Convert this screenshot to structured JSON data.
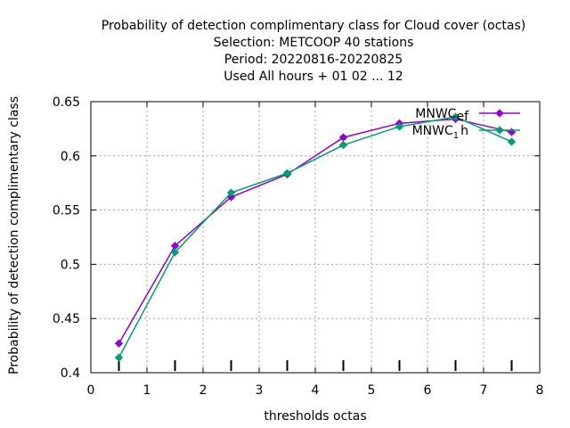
{
  "chart_data": {
    "type": "line",
    "title_lines": [
      "Probability of detection complimentary class  for Cloud cover (octas)",
      "Selection: METCOOP     40 stations",
      "Period: 20220816-20220825",
      "Used  All hours + 01 02 ... 12"
    ],
    "xlabel": "thresholds octas",
    "ylabel": "Probability of detection complimentary class",
    "xlim": [
      0,
      8
    ],
    "ylim": [
      0.4,
      0.65
    ],
    "x_ticks": [
      0,
      1,
      2,
      3,
      4,
      5,
      6,
      7,
      8
    ],
    "x_tick_labels": [
      "0",
      "1",
      "2",
      "3",
      "4",
      "5",
      "6",
      "7",
      "8"
    ],
    "y_ticks": [
      0.4,
      0.45,
      0.5,
      0.55,
      0.6,
      0.65
    ],
    "y_tick_labels": [
      "0.4",
      "0.45",
      "0.5",
      "0.55",
      "0.6",
      "0.65"
    ],
    "grid": true,
    "legend_position": "top-right",
    "threshold_marks": [
      0.5,
      1.5,
      2.5,
      3.5,
      4.5,
      5.5,
      6.5,
      7.5
    ],
    "x": [
      0.5,
      1.5,
      2.5,
      3.5,
      4.5,
      5.5,
      6.5,
      7.5
    ],
    "series": [
      {
        "name": "MNWC_ef",
        "legend_parts": [
          "MNWC",
          "ef"
        ],
        "color": "#9400d3",
        "values": [
          0.427,
          0.517,
          0.562,
          0.583,
          0.617,
          0.63,
          0.634,
          0.622
        ]
      },
      {
        "name": "MNWC_1h",
        "legend_parts": [
          "MNWC",
          "1",
          "h"
        ],
        "color": "#009e73",
        "values": [
          0.414,
          0.511,
          0.566,
          0.584,
          0.61,
          0.627,
          0.636,
          0.613
        ]
      }
    ]
  }
}
